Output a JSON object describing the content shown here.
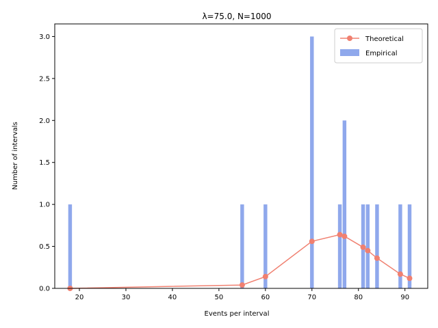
{
  "chart_data": {
    "type": "bar",
    "title": "λ=75.0, N=1000",
    "xlabel": "Events per interval",
    "ylabel": "Number of intervals",
    "xlim": [
      14.7,
      94.9
    ],
    "ylim": [
      0,
      3.15
    ],
    "xticks": [
      20,
      30,
      40,
      50,
      60,
      70,
      80,
      90
    ],
    "yticks": [
      0.0,
      0.5,
      1.0,
      1.5,
      2.0,
      2.5,
      3.0
    ],
    "xtick_labels": [
      "20",
      "30",
      "40",
      "50",
      "60",
      "70",
      "80",
      "90"
    ],
    "ytick_labels": [
      "0.0",
      "0.5",
      "1.0",
      "1.5",
      "2.0",
      "2.5",
      "3.0"
    ],
    "grid": false,
    "legend": {
      "position": "upper right",
      "entries": [
        "Theoretical",
        "Empirical"
      ]
    },
    "series": [
      {
        "name": "Empirical",
        "kind": "bar",
        "color": "#8fa8ec",
        "x": [
          18,
          55,
          60,
          70,
          76,
          77,
          81,
          82,
          84,
          89,
          91
        ],
        "values": [
          1,
          1,
          1,
          3,
          1,
          2,
          1,
          1,
          1,
          1,
          1
        ]
      },
      {
        "name": "Theoretical",
        "kind": "line",
        "color": "#f08070",
        "x": [
          18,
          55,
          60,
          70,
          76,
          77,
          81,
          82,
          84,
          89,
          91
        ],
        "values": [
          0.0,
          0.04,
          0.14,
          0.56,
          0.64,
          0.62,
          0.49,
          0.45,
          0.36,
          0.17,
          0.12
        ]
      }
    ]
  }
}
